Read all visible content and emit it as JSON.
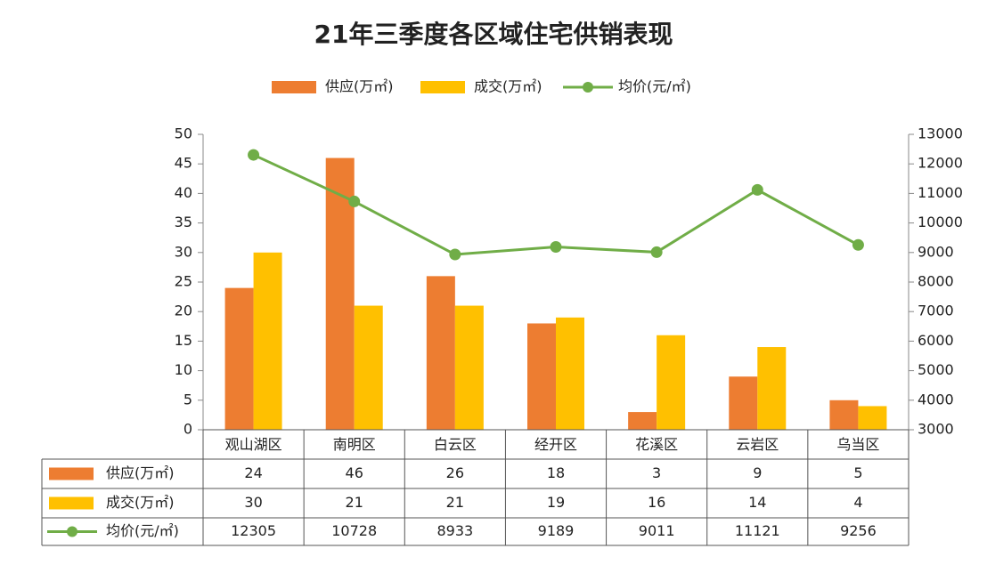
{
  "chart_data": {
    "type": "bar",
    "title": "21年三季度各区域住宅供销表现",
    "categories": [
      "观山湖区",
      "南明区",
      "白云区",
      "经开区",
      "花溪区",
      "云岩区",
      "乌当区"
    ],
    "series": [
      {
        "name": "供应(万㎡)",
        "type": "bar",
        "color": "#ed7d31",
        "values": [
          24,
          46,
          26,
          18,
          3,
          9,
          5
        ]
      },
      {
        "name": "成交(万㎡)",
        "type": "bar",
        "color": "#ffc000",
        "values": [
          30,
          21,
          21,
          19,
          16,
          14,
          4
        ]
      },
      {
        "name": "均价(元/㎡)",
        "type": "line",
        "axis": "y2",
        "color": "#70ad47",
        "values": [
          12305,
          10728,
          8933,
          9189,
          9011,
          11121,
          9256
        ]
      }
    ],
    "ylim": [
      0,
      50
    ],
    "yticks": [
      0,
      5,
      10,
      15,
      20,
      25,
      30,
      35,
      40,
      45,
      50
    ],
    "y2lim": [
      3000,
      13000
    ],
    "y2ticks": [
      3000,
      4000,
      5000,
      6000,
      7000,
      8000,
      9000,
      10000,
      11000,
      12000,
      13000
    ],
    "legend": "top",
    "data_table": true
  }
}
